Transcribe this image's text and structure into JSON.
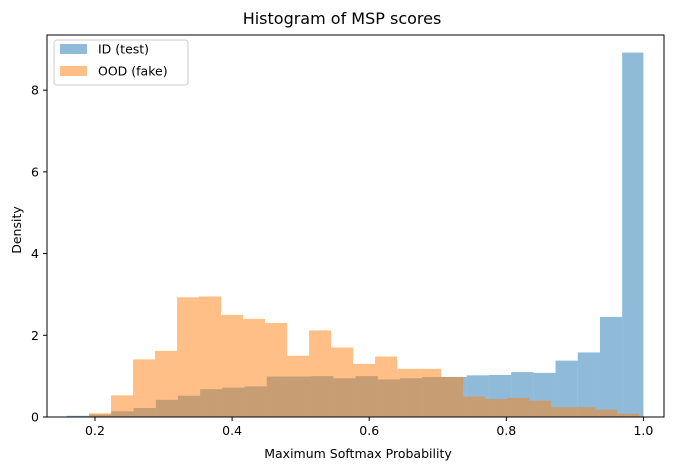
{
  "chart_data": {
    "type": "bar",
    "title": "Histogram of MSP scores",
    "xlabel": "Maximum Softmax Probability",
    "ylabel": "Density",
    "xlim": [
      0.13,
      1.03
    ],
    "ylim": [
      0,
      9.35
    ],
    "xticks": [
      {
        "value": 0.2,
        "label": "0.2"
      },
      {
        "value": 0.4,
        "label": "0.4"
      },
      {
        "value": 0.6,
        "label": "0.6"
      },
      {
        "value": 0.8,
        "label": "0.8"
      },
      {
        "value": 1.0,
        "label": "1.0"
      }
    ],
    "yticks": [
      {
        "value": 0,
        "label": "0"
      },
      {
        "value": 2,
        "label": "2"
      },
      {
        "value": 4,
        "label": "4"
      },
      {
        "value": 6,
        "label": "6"
      },
      {
        "value": 8,
        "label": "8"
      }
    ],
    "grid": false,
    "legend_position": "upper left",
    "series": [
      {
        "name": "ID (test)",
        "color": "#1f77b4",
        "alpha": 0.5,
        "bin_edges": [
          0.159,
          0.1914,
          0.2238,
          0.2562,
          0.2886,
          0.321,
          0.3534,
          0.3858,
          0.4182,
          0.4506,
          0.483,
          0.5154,
          0.5478,
          0.5802,
          0.6126,
          0.645,
          0.6774,
          0.7098,
          0.7422,
          0.7746,
          0.807,
          0.8394,
          0.8718,
          0.9042,
          0.9366,
          0.969,
          1.0
        ],
        "values": [
          0.03,
          0.06,
          0.14,
          0.22,
          0.42,
          0.52,
          0.68,
          0.72,
          0.75,
          0.99,
          0.99,
          1.0,
          0.95,
          1.0,
          0.92,
          0.95,
          0.98,
          0.98,
          1.02,
          1.03,
          1.1,
          1.08,
          1.38,
          1.58,
          2.45,
          8.92
        ]
      },
      {
        "name": "OOD (fake)",
        "color": "#ff7f0e",
        "alpha": 0.5,
        "bin_edges": [
          0.1913,
          0.2234,
          0.2555,
          0.2876,
          0.3197,
          0.3518,
          0.3839,
          0.416,
          0.4481,
          0.4802,
          0.5123,
          0.5444,
          0.5765,
          0.6086,
          0.6407,
          0.6728,
          0.7049,
          0.737,
          0.7691,
          0.8012,
          0.8333,
          0.8654,
          0.8975,
          0.9296,
          0.9617,
          0.9938
        ],
        "values": [
          0.09,
          0.53,
          1.41,
          1.62,
          2.93,
          2.95,
          2.5,
          2.4,
          2.3,
          1.5,
          2.12,
          1.7,
          1.3,
          1.48,
          1.18,
          1.18,
          0.98,
          0.5,
          0.44,
          0.47,
          0.4,
          0.24,
          0.24,
          0.18,
          0.08
        ]
      }
    ]
  }
}
